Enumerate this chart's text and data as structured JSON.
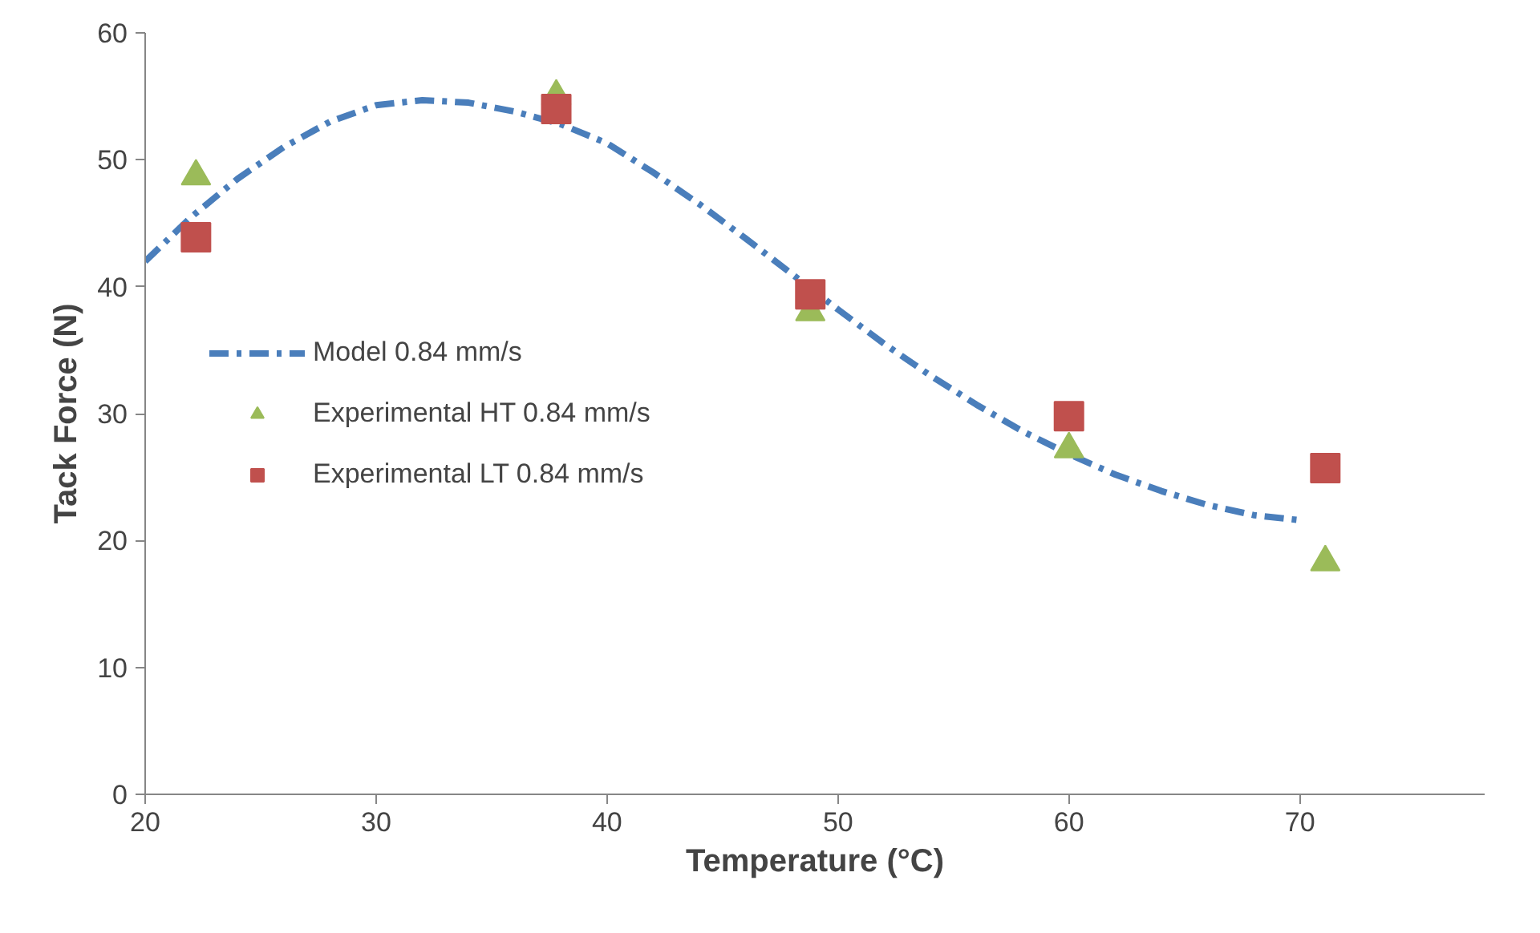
{
  "chart_data": {
    "type": "scatter",
    "xlabel": "Temperature (°C)",
    "ylabel": "Tack Force (N)",
    "xlim": [
      20,
      78
    ],
    "xticks": [
      20,
      30,
      40,
      50,
      60,
      70
    ],
    "ylim": [
      0,
      60
    ],
    "yticks": [
      0,
      10,
      20,
      30,
      40,
      50,
      60
    ],
    "grid": false,
    "legend": "left",
    "series": [
      {
        "name": "Model 0.84 mm/s",
        "type": "line",
        "line_style": "dashed",
        "marker": "none",
        "color": "#4a7ebb",
        "x": [
          20,
          22,
          24,
          26,
          28,
          30,
          32,
          34,
          36,
          38,
          40,
          42,
          44,
          46,
          48,
          50,
          52,
          54,
          56,
          58,
          60,
          62,
          64,
          66,
          68,
          70
        ],
        "values": [
          42,
          45.5,
          48.5,
          51,
          53,
          54.3,
          54.7,
          54.5,
          53.8,
          52.8,
          51.3,
          49,
          46.5,
          43.8,
          41,
          38.2,
          35.5,
          33,
          30.7,
          28.6,
          26.8,
          25.2,
          23.9,
          22.8,
          22,
          21.6
        ]
      },
      {
        "name": "Experimental HT 0.84 mm/s",
        "marker": "triangle",
        "color": "#9bbb59",
        "x": [
          22.2,
          37.8,
          48.8,
          60,
          71.1
        ],
        "values": [
          48.7,
          55,
          38,
          27.2,
          18.3
        ]
      },
      {
        "name": "Experimental LT 0.84 mm/s",
        "marker": "square",
        "color": "#c0504d",
        "x": [
          22.2,
          37.8,
          48.8,
          60,
          71.1
        ],
        "values": [
          43.9,
          54,
          39.4,
          29.8,
          25.7
        ]
      }
    ]
  }
}
